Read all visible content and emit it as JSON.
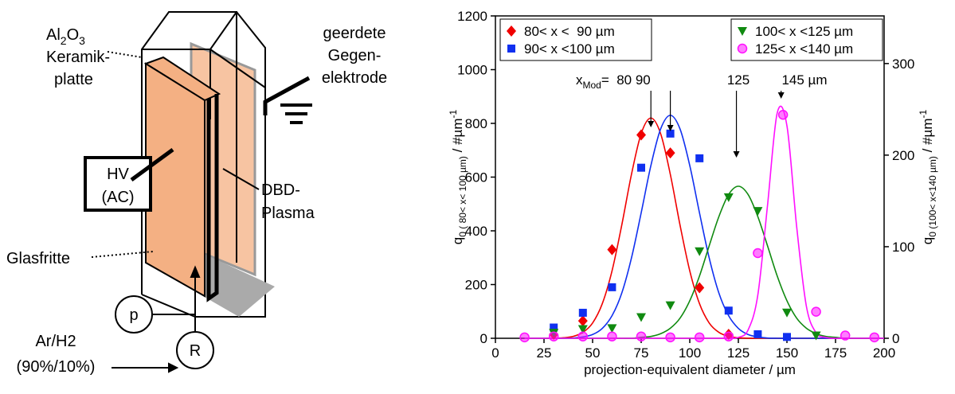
{
  "diagram": {
    "material": [
      "Al",
      "2",
      "O",
      "3"
    ],
    "material_label": [
      "Keramik-",
      "platte"
    ],
    "electrode": [
      "geerdete",
      "Gegen-",
      "elektrode"
    ],
    "hv": [
      "HV",
      "(AC)"
    ],
    "plasma": [
      "DBD-",
      "Plasma"
    ],
    "frit": "Glasfritte",
    "pressure": "p",
    "regulator": "R",
    "gas": [
      "Ar/H2",
      "(90%/10%)"
    ]
  },
  "chart_data": {
    "type": "scatter",
    "xlabel": "projection-equivalent diameter / µm",
    "ylabel": [
      "q",
      "0 ( 80< x< 100 µm)",
      " / #µm",
      "-1"
    ],
    "y2label": [
      "q",
      "0 (100< x<140 µm)",
      " / #µm",
      "-1"
    ],
    "xlim": [
      0,
      200
    ],
    "xticks": [
      0,
      25,
      50,
      75,
      100,
      125,
      150,
      175,
      200
    ],
    "ylim": [
      0,
      1200
    ],
    "yticks": [
      0,
      200,
      400,
      600,
      800,
      1000,
      1200
    ],
    "y2lim": [
      0,
      352
    ],
    "y2ticks": [
      0,
      100,
      200,
      300
    ],
    "series": [
      {
        "name": "80< x <  90 µm",
        "color": "#f00000",
        "marker": "diamond",
        "axis": "y",
        "legend": "upper left",
        "x": [
          30,
          45,
          60,
          75,
          90,
          105,
          120
        ],
        "values": [
          15,
          65,
          330,
          757,
          690,
          188,
          15
        ]
      },
      {
        "name": "90< x <100 µm",
        "color": "#1030f0",
        "marker": "square",
        "axis": "y",
        "legend": "upper left",
        "x": [
          30,
          45,
          60,
          75,
          90,
          105,
          120,
          135,
          150
        ],
        "values": [
          40,
          95,
          190,
          635,
          762,
          670,
          103,
          15,
          5
        ]
      },
      {
        "name": "100< x <125 µm",
        "color": "#108a10",
        "marker": "triangle-down",
        "axis": "y2",
        "legend": "upper right",
        "x": [
          30,
          45,
          60,
          75,
          90,
          105,
          120,
          135,
          150,
          165
        ],
        "values": [
          6,
          10,
          11,
          23,
          36,
          95,
          154,
          139,
          28,
          3
        ]
      },
      {
        "name": "125< x <140 µm",
        "color": "#ff10ff",
        "marker": "circle",
        "axis": "y2",
        "legend": "upper right",
        "x": [
          15,
          30,
          45,
          60,
          75,
          90,
          105,
          120,
          135,
          148,
          165,
          180,
          195
        ],
        "values": [
          1,
          2,
          2,
          2,
          2,
          1,
          1,
          2,
          93,
          244,
          29,
          3,
          1
        ]
      }
    ],
    "fit_x": [
      15,
      20,
      25,
      30,
      35,
      40,
      45,
      50,
      55,
      60,
      65,
      70,
      75,
      80,
      85,
      90,
      95,
      100,
      105,
      110,
      115,
      120,
      125,
      130,
      135,
      140,
      145,
      150,
      155,
      160,
      165,
      170,
      175,
      180,
      185,
      190,
      195,
      200
    ],
    "fits": [
      {
        "color": "#f00000",
        "axis": "y",
        "values": [
          0,
          0,
          0,
          0,
          2,
          7,
          22,
          57,
          129,
          251,
          421,
          610,
          762,
          820,
          762,
          610,
          421,
          251,
          129,
          57,
          22,
          7,
          2,
          0,
          0,
          0,
          0,
          0,
          0,
          0,
          0,
          0,
          0,
          0,
          0,
          0,
          0,
          0
        ]
      },
      {
        "color": "#1030f0",
        "axis": "y",
        "values": [
          0,
          0,
          0,
          0,
          0,
          1,
          5,
          14,
          37,
          84,
          168,
          299,
          467,
          643,
          779,
          830,
          779,
          643,
          467,
          299,
          168,
          84,
          37,
          14,
          5,
          1,
          0,
          0,
          0,
          0,
          0,
          0,
          0,
          0,
          0,
          0,
          0,
          0
        ]
      },
      {
        "color": "#108a10",
        "axis": "y2",
        "values": [
          0,
          0,
          0,
          0,
          0,
          0,
          0,
          0,
          0,
          0,
          0,
          0,
          1,
          2,
          5,
          11,
          22,
          41,
          68,
          101,
          133,
          157,
          166,
          157,
          133,
          101,
          68,
          41,
          22,
          11,
          5,
          2,
          1,
          0,
          0,
          0,
          0,
          0
        ]
      },
      {
        "color": "#ff10ff",
        "axis": "y2",
        "values": [
          0,
          0,
          0,
          0,
          0,
          0,
          0,
          0,
          0,
          0,
          0,
          0,
          0,
          0,
          0,
          0,
          0,
          0,
          0,
          0,
          0,
          0,
          1,
          9,
          47,
          145,
          246,
          232,
          122,
          35,
          6,
          1,
          0,
          0,
          0,
          0,
          0,
          0
        ]
      }
    ],
    "mode_arrows": [
      80,
      90,
      124,
      147
    ],
    "annotations": {
      "mode_symbol": "x",
      "mode_sub": "Mod",
      "mode_values": "=  80 90",
      "green_mode": "125",
      "magenta_mode": "145 µm"
    }
  }
}
